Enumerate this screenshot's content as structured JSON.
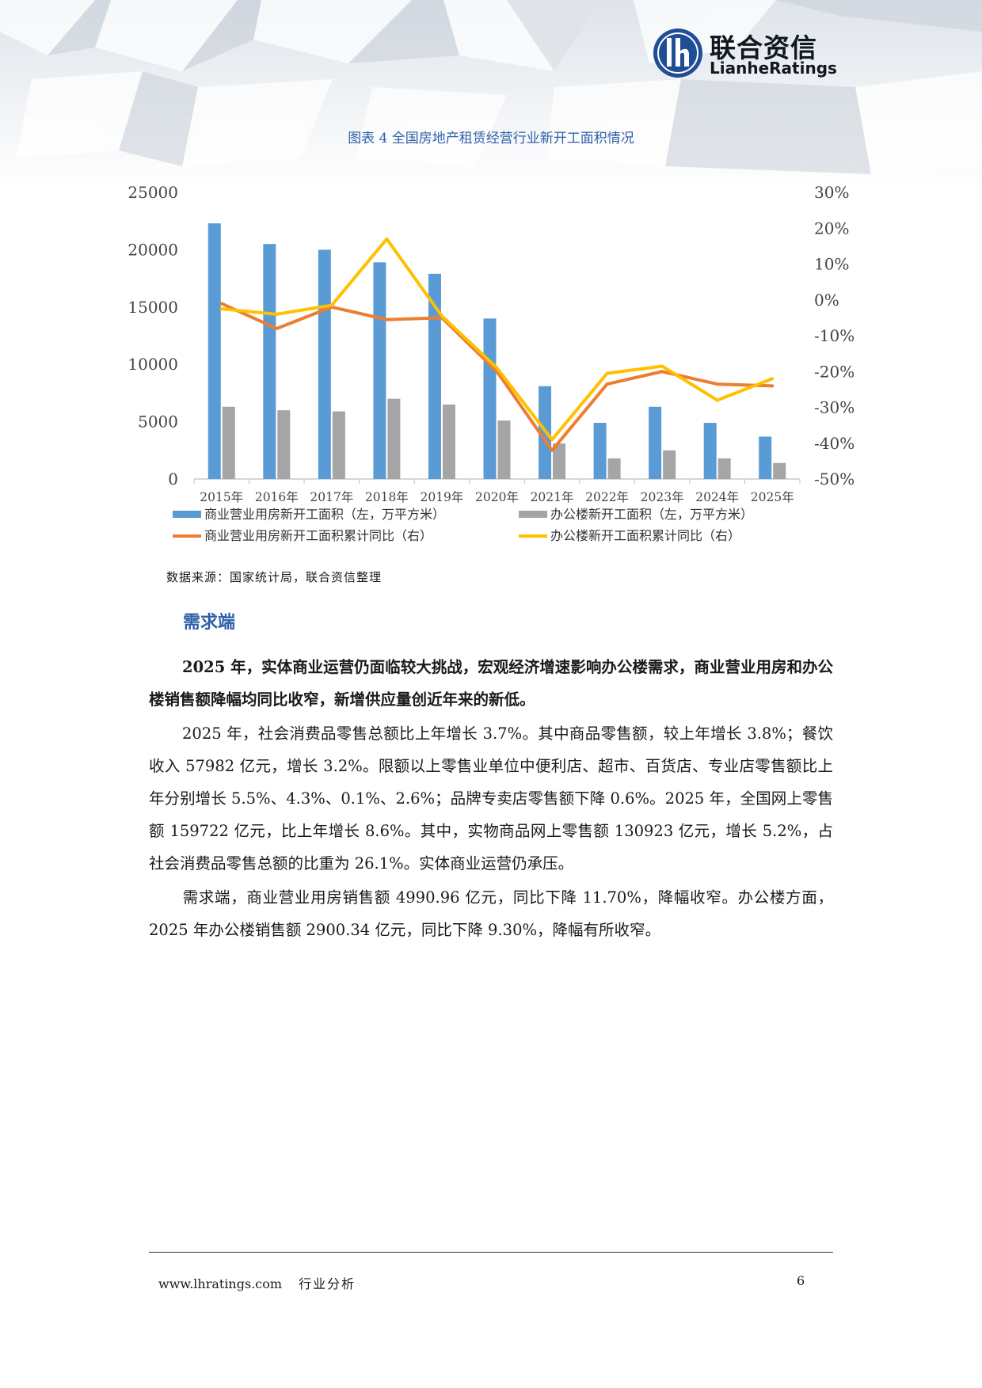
{
  "header": {
    "logo_cn": "联合资信",
    "logo_en": "LianheRatings"
  },
  "figure": {
    "title": "图表 4  全国房地产租赁经营行业新开工面积情况",
    "source": "数据来源：国家统计局，联合资信整理"
  },
  "chart_data": {
    "type": "bar+line",
    "categories": [
      "2015年",
      "2016年",
      "2017年",
      "2018年",
      "2019年",
      "2020年",
      "2021年",
      "2022年",
      "2023年",
      "2024年",
      "2025年"
    ],
    "y_left": {
      "min": 0,
      "max": 25000,
      "ticks": [
        "0",
        "5000",
        "10000",
        "15000",
        "20000",
        "25000"
      ]
    },
    "y_right": {
      "min": -50,
      "max": 30,
      "ticks": [
        "-50%",
        "-40%",
        "-30%",
        "-20%",
        "-10%",
        "0%",
        "10%",
        "20%",
        "30%"
      ]
    },
    "bar_series": [
      {
        "name": "商业营业用房新开工面积（左，万平方米）",
        "color": "#5b9bd5",
        "values": [
          22300,
          20500,
          20000,
          18900,
          17900,
          14000,
          8100,
          4900,
          6300,
          4900,
          3700
        ]
      },
      {
        "name": "办公楼新开工面积（左，万平方米）",
        "color": "#a5a5a5",
        "values": [
          6300,
          6000,
          5900,
          7000,
          6500,
          5100,
          3100,
          1800,
          2500,
          1800,
          1400
        ]
      }
    ],
    "line_series": [
      {
        "name": "商业营业用房新开工面积累计同比（右）",
        "color": "#ed7d31",
        "values": [
          -1,
          -8,
          -2,
          -5.5,
          -5,
          -20,
          -42,
          -23.5,
          -20,
          -23.5,
          -24
        ]
      },
      {
        "name": "办公楼新开工面积累计同比（右）",
        "color": "#ffc000",
        "values": [
          -2.5,
          -4,
          -1.5,
          17,
          -4.5,
          -19,
          -39,
          -20.5,
          -18.5,
          -28,
          -22
        ]
      }
    ],
    "legend_position": "bottom"
  },
  "body": {
    "section_title": "需求端",
    "bold_para": "2025 年，实体商业运营仍面临较大挑战，宏观经济增速影响办公楼需求，商业营业用房和办公楼销售额降幅均同比收窄，新增供应量创近年来的新低。",
    "para1": "2025 年，社会消费品零售总额比上年增长 3.7%。其中商品零售额，较上年增长 3.8%；餐饮收入 57982 亿元，增长 3.2%。限额以上零售业单位中便利店、超市、百货店、专业店零售额比上年分别增长 5.5%、4.3%、0.1%、2.6%；品牌专卖店零售额下降 0.6%。2025 年，全国网上零售额 159722 亿元，比上年增长 8.6%。其中，实物商品网上零售额 130923 亿元，增长 5.2%，占社会消费品零售总额的比重为 26.1%。实体商业运营仍承压。",
    "para2": "需求端，商业营业用房销售额 4990.96 亿元，同比下降 11.70%，降幅收窄。办公楼方面，2025 年办公楼销售额 2900.34 亿元，同比下降 9.30%，降幅有所收窄。"
  },
  "footer": {
    "website": "www.lhratings.com",
    "category": "行业分析",
    "page": "6"
  }
}
